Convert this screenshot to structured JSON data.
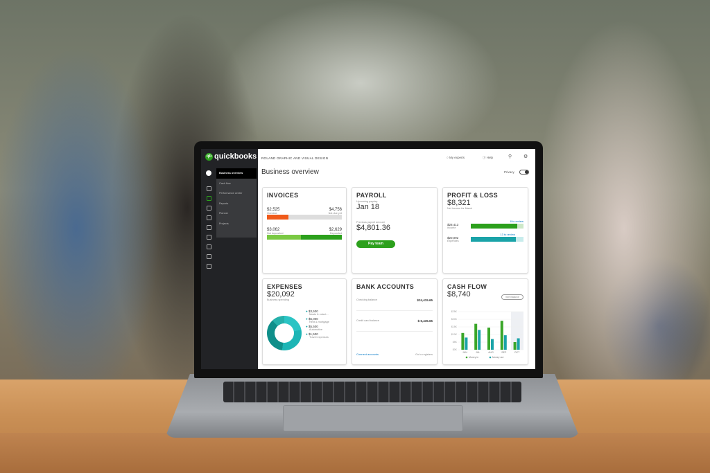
{
  "app": {
    "logo_small": "intuit",
    "logo": "quickbooks",
    "company": "ROLAND GRAPHIC AND VISUAL DESIGN",
    "page_title": "Business overview"
  },
  "sidebar": {
    "items": [
      {
        "label": "Business overview",
        "active": true
      },
      {
        "label": "Cash flow"
      },
      {
        "label": "Performance center"
      },
      {
        "label": "Reports"
      },
      {
        "label": "Planner"
      },
      {
        "label": "Projects"
      }
    ]
  },
  "topnav": {
    "experts": "My experts",
    "help": "Help",
    "privacy": "Privacy"
  },
  "invoices": {
    "title": "INVOICES",
    "overdue": "$2,525",
    "overdue_label": "Overdue",
    "not_due": "$4,756",
    "not_due_label": "Not due yet",
    "not_deposited": "$3,062",
    "not_deposited_label": "Not deposited",
    "deposited": "$2,629",
    "deposited_label": "Deposited",
    "colors": {
      "overdue": "#f05a1a",
      "not_deposited": "#7ac943",
      "deposited": "#2ca01c"
    }
  },
  "payroll": {
    "title": "PAYROLL",
    "upcoming_label": "Upcoming payday",
    "upcoming": "Jan 18",
    "previous_label": "Previous payroll amount",
    "previous": "$4,801.36",
    "button": "Pay team"
  },
  "pnl": {
    "title": "PROFIT & LOSS",
    "net": "$8,321",
    "net_label": "Net income for March",
    "income": "$28,413",
    "income_label": "Income",
    "income_review": "8 to review",
    "expenses": "$20,092",
    "expenses_label": "Expenses",
    "expenses_review": "13 to review"
  },
  "expenses": {
    "title": "EXPENSES",
    "total": "$20,092",
    "total_label": "Business spending",
    "items": [
      {
        "amount": "$3,500",
        "label": "Meals & entert..."
      },
      {
        "amount": "$5,000",
        "label": "Rent & mortgage"
      },
      {
        "amount": "$5,500",
        "label": "Automotive"
      },
      {
        "amount": "$1,500",
        "label": "Travel expenses"
      }
    ]
  },
  "bank": {
    "title": "BANK ACCOUNTS",
    "checking_label": "Checking balance",
    "checking": "$24,415.65",
    "credit_label": "Credit card balance",
    "credit": "$-5,435.65",
    "connect": "Connect accounts",
    "register": "Go to registers"
  },
  "cashflow": {
    "title": "CASH FLOW",
    "total": "$8,740",
    "button": "See Balance"
  },
  "chart_data": {
    "type": "bar",
    "categories": [
      "JUN",
      "JUL",
      "AUG",
      "SEP",
      "OCT"
    ],
    "yticks": [
      "$25K",
      "$20K",
      "$15K",
      "$10K",
      "$5K",
      "$0K"
    ],
    "ylim": [
      0,
      25
    ],
    "series": [
      {
        "name": "Money in",
        "color": "#3aa629",
        "values": [
          11,
          17,
          14.5,
          19,
          5
        ]
      },
      {
        "name": "Money out",
        "color": "#1aa3a8",
        "values": [
          8,
          13,
          7,
          9.5,
          7.5
        ]
      }
    ]
  }
}
